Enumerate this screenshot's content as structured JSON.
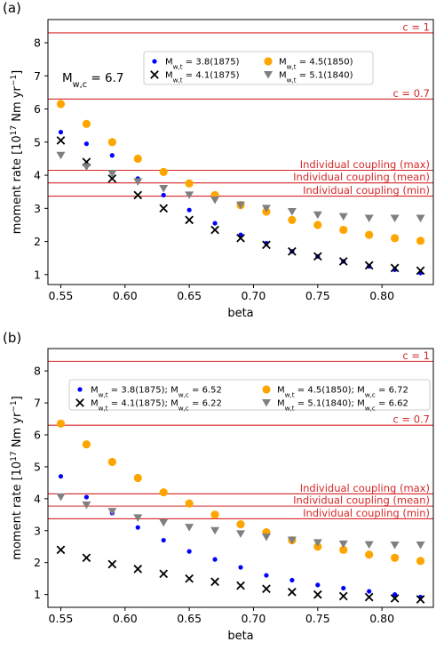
{
  "chart_data": [
    {
      "type": "scatter",
      "panel_label": "(a)",
      "xlabel": "beta",
      "ylabel": "moment rate [10^17 Nm yr^-1]",
      "xlim": [
        0.54,
        0.84
      ],
      "ylim": [
        0.7,
        8.7
      ],
      "xticks": [
        0.55,
        0.6,
        0.65,
        0.7,
        0.75,
        0.8
      ],
      "yticks": [
        1,
        2,
        3,
        4,
        5,
        6,
        7,
        8
      ],
      "annotation": "M_{w,c} = 6.7",
      "reference_lines": [
        {
          "label": "c = 1",
          "y": 8.3
        },
        {
          "label": "c = 0.7",
          "y": 6.3
        },
        {
          "label": "Individual coupling (max)",
          "y": 4.15
        },
        {
          "label": "Individual coupling (mean)",
          "y": 3.77
        },
        {
          "label": "Individual coupling (min)",
          "y": 3.37
        }
      ],
      "x": [
        0.55,
        0.57,
        0.59,
        0.61,
        0.63,
        0.65,
        0.67,
        0.69,
        0.71,
        0.73,
        0.75,
        0.77,
        0.79,
        0.81,
        0.83
      ],
      "series": [
        {
          "name": "M_{w,t} = 3.8(1875)",
          "marker": "dot",
          "color": "#0000ff",
          "values": [
            5.3,
            4.95,
            4.6,
            3.9,
            3.4,
            2.95,
            2.55,
            2.2,
            1.95,
            1.7,
            1.55,
            1.4,
            1.25,
            1.15,
            1.05
          ]
        },
        {
          "name": "M_{w,t} = 4.5(1850)",
          "marker": "circle",
          "color": "#ffa500",
          "values": [
            6.15,
            5.55,
            5.0,
            4.5,
            4.1,
            3.75,
            3.4,
            3.1,
            2.9,
            2.65,
            2.5,
            2.35,
            2.2,
            2.1,
            2.02
          ]
        },
        {
          "name": "M_{w,t} = 4.1(1875)",
          "marker": "x",
          "color": "#000000",
          "values": [
            5.05,
            4.4,
            3.9,
            3.4,
            3.0,
            2.65,
            2.35,
            2.1,
            1.9,
            1.7,
            1.55,
            1.4,
            1.28,
            1.2,
            1.12
          ]
        },
        {
          "name": "M_{w,t} = 5.1(1840)",
          "marker": "triangle",
          "color": "#808080",
          "values": [
            4.6,
            4.25,
            4.05,
            3.8,
            3.6,
            3.4,
            3.25,
            3.1,
            3.0,
            2.9,
            2.8,
            2.75,
            2.7,
            2.7,
            2.7
          ]
        }
      ]
    },
    {
      "type": "scatter",
      "panel_label": "(b)",
      "xlabel": "beta",
      "ylabel": "moment rate [10^17 Nm yr^-1]",
      "xlim": [
        0.54,
        0.84
      ],
      "ylim": [
        0.6,
        8.7
      ],
      "xticks": [
        0.55,
        0.6,
        0.65,
        0.7,
        0.75,
        0.8
      ],
      "yticks": [
        1,
        2,
        3,
        4,
        5,
        6,
        7,
        8
      ],
      "annotation": "",
      "reference_lines": [
        {
          "label": "c = 1",
          "y": 8.3
        },
        {
          "label": "c = 0.7",
          "y": 6.3
        },
        {
          "label": "Individual coupling (max)",
          "y": 4.15
        },
        {
          "label": "Individual coupling (mean)",
          "y": 3.77
        },
        {
          "label": "Individual coupling (min)",
          "y": 3.37
        }
      ],
      "x": [
        0.55,
        0.57,
        0.59,
        0.61,
        0.63,
        0.65,
        0.67,
        0.69,
        0.71,
        0.73,
        0.75,
        0.77,
        0.79,
        0.81,
        0.83
      ],
      "series": [
        {
          "name": "M_{w,t} = 3.8(1875); M_{w,c} = 6.52",
          "marker": "dot",
          "color": "#0000ff",
          "values": [
            4.7,
            4.05,
            3.55,
            3.1,
            2.7,
            2.35,
            2.1,
            1.85,
            1.6,
            1.45,
            1.3,
            1.2,
            1.1,
            1.0,
            0.92
          ]
        },
        {
          "name": "M_{w,t} = 4.5(1850); M_{w,c} = 6.72",
          "marker": "circle",
          "color": "#ffa500",
          "values": [
            6.35,
            5.7,
            5.15,
            4.65,
            4.2,
            3.85,
            3.5,
            3.2,
            2.95,
            2.7,
            2.5,
            2.4,
            2.25,
            2.15,
            2.05
          ]
        },
        {
          "name": "M_{w,t} = 4.1(1875); M_{w,c} = 6.22",
          "marker": "x",
          "color": "#000000",
          "values": [
            2.4,
            2.15,
            1.95,
            1.8,
            1.65,
            1.5,
            1.4,
            1.28,
            1.18,
            1.08,
            1.0,
            0.95,
            0.92,
            0.88,
            0.85
          ]
        },
        {
          "name": "M_{w,t} = 5.1(1840); M_{w,c} = 6.62",
          "marker": "triangle",
          "color": "#808080",
          "values": [
            4.05,
            3.8,
            3.6,
            3.4,
            3.25,
            3.1,
            3.0,
            2.9,
            2.8,
            2.7,
            2.62,
            2.58,
            2.56,
            2.55,
            2.55
          ]
        }
      ]
    }
  ],
  "colors": {
    "reference_line": "#d62728",
    "axes": "#000000"
  }
}
